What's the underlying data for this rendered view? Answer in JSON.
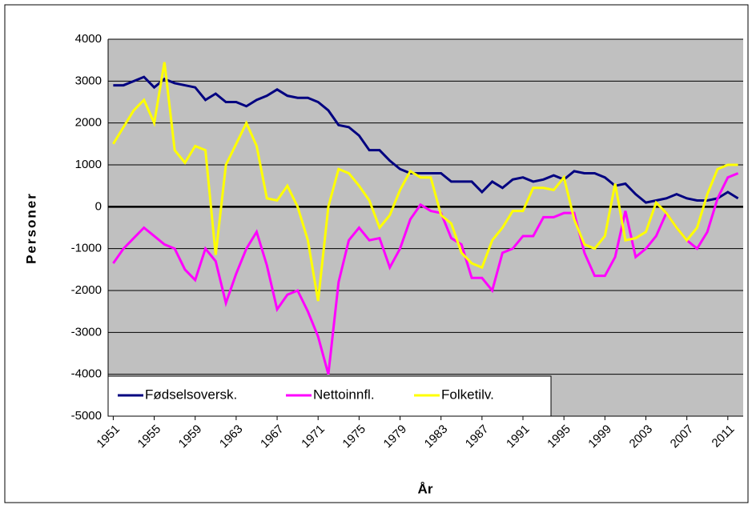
{
  "chart_data": {
    "type": "line",
    "xlabel": "År",
    "ylabel": "Personer",
    "x": [
      1951,
      1952,
      1953,
      1954,
      1955,
      1956,
      1957,
      1958,
      1959,
      1960,
      1961,
      1962,
      1963,
      1964,
      1965,
      1966,
      1967,
      1968,
      1969,
      1970,
      1971,
      1972,
      1973,
      1974,
      1975,
      1976,
      1977,
      1978,
      1979,
      1980,
      1981,
      1982,
      1983,
      1984,
      1985,
      1986,
      1987,
      1988,
      1989,
      1990,
      1991,
      1992,
      1993,
      1994,
      1995,
      1996,
      1997,
      1998,
      1999,
      2000,
      2001,
      2002,
      2003,
      2004,
      2005,
      2006,
      2007,
      2008,
      2009,
      2010,
      2011,
      2012
    ],
    "series": [
      {
        "name": "Fødselsoversk.",
        "color": "#000080",
        "values": [
          2900,
          2900,
          3000,
          3100,
          2850,
          3050,
          2950,
          2900,
          2850,
          2550,
          2700,
          2500,
          2500,
          2400,
          2550,
          2650,
          2800,
          2650,
          2600,
          2600,
          2500,
          2300,
          1950,
          1900,
          1700,
          1350,
          1350,
          1100,
          900,
          800,
          800,
          800,
          800,
          600,
          600,
          600,
          350,
          600,
          450,
          650,
          700,
          600,
          650,
          750,
          650,
          850,
          800,
          800,
          700,
          500,
          550,
          300,
          100,
          150,
          200,
          300,
          200,
          150,
          150,
          200,
          350,
          200
        ]
      },
      {
        "name": "Nettoinnfl.",
        "color": "#ff00ff",
        "values": [
          -1350,
          -1000,
          -750,
          -500,
          -700,
          -900,
          -1000,
          -1500,
          -1750,
          -1000,
          -1300,
          -2300,
          -1600,
          -1000,
          -600,
          -1400,
          -2450,
          -2100,
          -2000,
          -2500,
          -3100,
          -4000,
          -1800,
          -800,
          -500,
          -800,
          -750,
          -1450,
          -1000,
          -300,
          50,
          -100,
          -150,
          -750,
          -900,
          -1700,
          -1700,
          -2000,
          -1100,
          -1000,
          -700,
          -700,
          -250,
          -250,
          -150,
          -150,
          -1100,
          -1650,
          -1650,
          -1200,
          -100,
          -1200,
          -1000,
          -700,
          -150,
          -500,
          -800,
          -1000,
          -600,
          200,
          700,
          800
        ]
      },
      {
        "name": "Folketilv.",
        "color": "#ffff00",
        "values": [
          1500,
          1900,
          2300,
          2550,
          2000,
          3450,
          1350,
          1050,
          1450,
          1350,
          -1150,
          1000,
          1500,
          2000,
          1450,
          200,
          150,
          500,
          0,
          -800,
          -2250,
          0,
          900,
          800,
          500,
          150,
          -500,
          -200,
          400,
          850,
          700,
          700,
          -200,
          -400,
          -1100,
          -1350,
          -1450,
          -800,
          -500,
          -100,
          -100,
          450,
          450,
          400,
          700,
          -300,
          -900,
          -1000,
          -700,
          550,
          -800,
          -750,
          -600,
          100,
          -150,
          -500,
          -800,
          -500,
          300,
          900,
          1000,
          1000
        ]
      }
    ],
    "xlim": [
      1950.5,
      2012.5
    ],
    "xticks": [
      1951,
      1955,
      1959,
      1963,
      1967,
      1971,
      1975,
      1979,
      1983,
      1987,
      1991,
      1995,
      1999,
      2003,
      2007,
      2011
    ],
    "ylim": [
      -5000,
      4000
    ],
    "yticks": [
      -5000,
      -4000,
      -3000,
      -2000,
      -1000,
      0,
      1000,
      2000,
      3000,
      4000
    ],
    "grid": true,
    "legend": "lower left"
  }
}
